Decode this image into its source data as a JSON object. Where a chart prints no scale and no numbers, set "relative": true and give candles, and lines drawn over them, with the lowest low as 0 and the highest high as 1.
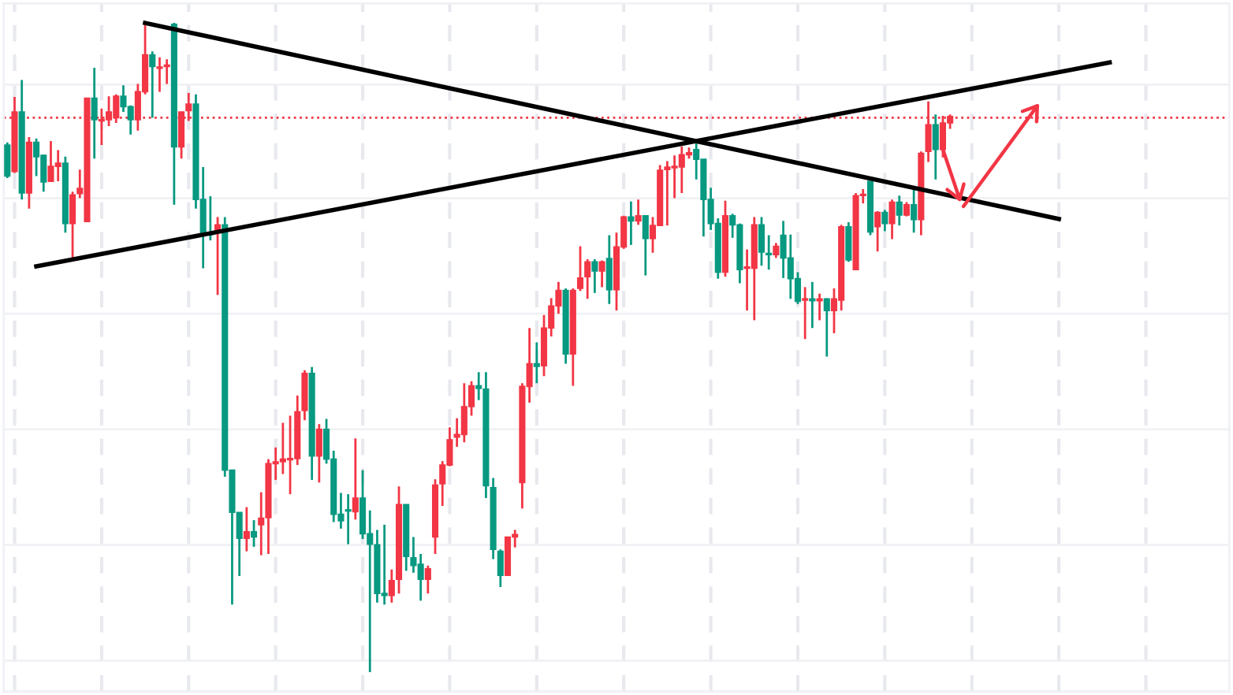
{
  "chart_data": {
    "type": "candlestick",
    "relative": true,
    "grid": true,
    "categories": [
      null,
      null,
      null,
      null,
      null,
      null,
      null,
      null,
      null,
      null,
      null,
      null,
      null,
      null,
      null,
      null,
      null,
      null,
      null,
      null,
      null,
      null,
      null,
      null,
      null,
      null,
      null,
      null,
      null,
      null,
      null,
      null,
      null,
      null,
      null,
      null,
      null,
      null,
      null,
      null,
      null,
      null,
      null,
      null,
      null,
      null,
      null,
      null,
      null,
      null,
      null,
      null,
      null,
      null,
      null,
      null,
      null,
      null,
      null,
      null,
      null,
      null,
      null,
      null,
      null,
      null,
      null,
      null,
      null,
      null,
      null,
      null,
      null,
      null,
      null,
      null,
      null,
      null,
      null,
      null,
      null,
      null,
      null,
      null,
      null,
      null,
      null,
      null,
      null,
      null,
      null,
      null,
      null,
      null,
      null,
      null,
      null,
      null,
      null,
      null,
      null,
      null,
      null,
      null,
      null,
      null,
      null,
      null,
      null,
      null,
      null,
      null,
      null,
      null,
      null,
      null,
      null,
      null,
      null,
      null,
      null,
      null,
      null,
      null,
      null,
      null,
      null,
      null,
      null,
      null,
      null,
      null,
      null,
      null,
      null,
      null,
      null,
      null,
      null,
      null,
      null,
      null,
      null,
      null,
      null,
      null,
      null,
      null,
      null,
      null,
      null,
      null,
      null,
      null,
      null,
      null,
      null,
      null,
      null,
      null,
      null,
      null,
      null,
      null,
      null,
      null,
      null,
      null,
      null
    ],
    "ohlc": [
      [
        0.812,
        0.816,
        0.761,
        0.764
      ],
      [
        0.771,
        0.886,
        0.769,
        0.863
      ],
      [
        0.863,
        0.912,
        0.728,
        0.738
      ],
      [
        0.738,
        0.824,
        0.714,
        0.816
      ],
      [
        0.816,
        0.822,
        0.764,
        0.794
      ],
      [
        0.796,
        0.797,
        0.74,
        0.755
      ],
      [
        0.756,
        0.818,
        0.755,
        0.779
      ],
      [
        0.779,
        0.804,
        0.756,
        0.784
      ],
      [
        0.784,
        0.794,
        0.677,
        0.691
      ],
      [
        0.691,
        0.74,
        0.636,
        0.735
      ],
      [
        0.737,
        0.774,
        0.73,
        0.745
      ],
      [
        0.694,
        0.884,
        0.694,
        0.884
      ],
      [
        0.884,
        0.931,
        0.791,
        0.851
      ],
      [
        0.849,
        0.868,
        0.812,
        0.851
      ],
      [
        0.851,
        0.887,
        0.841,
        0.863
      ],
      [
        0.854,
        0.89,
        0.846,
        0.887
      ],
      [
        0.887,
        0.904,
        0.863,
        0.871
      ],
      [
        0.871,
        0.873,
        0.828,
        0.851
      ],
      [
        0.851,
        0.906,
        0.834,
        0.894
      ],
      [
        0.894,
        1.0,
        0.89,
        0.951
      ],
      [
        0.951,
        0.956,
        0.854,
        0.933
      ],
      [
        0.93,
        0.947,
        0.894,
        0.932
      ],
      [
        0.933,
        0.944,
        0.906,
        0.935
      ],
      [
        0.998,
        1.0,
        0.72,
        0.809
      ],
      [
        0.809,
        0.863,
        0.791,
        0.863
      ],
      [
        0.865,
        0.892,
        0.849,
        0.875
      ],
      [
        0.875,
        0.89,
        0.714,
        0.728
      ],
      [
        0.728,
        0.778,
        0.622,
        0.677
      ],
      [
        0.677,
        0.733,
        0.665,
        0.674
      ],
      [
        0.679,
        0.701,
        0.581,
        0.689
      ],
      [
        0.689,
        0.701,
        0.301,
        0.311
      ],
      [
        0.311,
        0.311,
        0.104,
        0.246
      ],
      [
        0.246,
        0.246,
        0.148,
        0.206
      ],
      [
        0.206,
        0.254,
        0.186,
        0.216
      ],
      [
        0.216,
        0.234,
        0.193,
        0.208
      ],
      [
        0.227,
        0.277,
        0.18,
        0.237
      ],
      [
        0.238,
        0.328,
        0.182,
        0.321
      ],
      [
        0.321,
        0.346,
        0.296,
        0.324
      ],
      [
        0.324,
        0.384,
        0.305,
        0.328
      ],
      [
        0.327,
        0.395,
        0.274,
        0.329
      ],
      [
        0.329,
        0.426,
        0.319,
        0.401
      ],
      [
        0.403,
        0.465,
        0.388,
        0.46
      ],
      [
        0.46,
        0.47,
        0.296,
        0.333
      ],
      [
        0.333,
        0.382,
        0.292,
        0.374
      ],
      [
        0.374,
        0.39,
        0.321,
        0.328
      ],
      [
        0.328,
        0.341,
        0.231,
        0.243
      ],
      [
        0.243,
        0.276,
        0.221,
        0.233
      ],
      [
        0.25,
        0.274,
        0.197,
        0.248
      ],
      [
        0.247,
        0.36,
        0.235,
        0.268
      ],
      [
        0.268,
        0.311,
        0.205,
        0.213
      ],
      [
        0.213,
        0.249,
        0.0,
        0.197
      ],
      [
        0.196,
        0.219,
        0.107,
        0.121
      ],
      [
        0.121,
        0.227,
        0.104,
        0.118
      ],
      [
        0.118,
        0.158,
        0.107,
        0.141
      ],
      [
        0.143,
        0.286,
        0.121,
        0.258
      ],
      [
        0.258,
        0.258,
        0.156,
        0.178
      ],
      [
        0.176,
        0.208,
        0.153,
        0.164
      ],
      [
        0.166,
        0.182,
        0.11,
        0.143
      ],
      [
        0.143,
        0.164,
        0.121,
        0.159
      ],
      [
        0.208,
        0.297,
        0.182,
        0.288
      ],
      [
        0.29,
        0.325,
        0.256,
        0.319
      ],
      [
        0.319,
        0.377,
        0.317,
        0.358
      ],
      [
        0.362,
        0.391,
        0.347,
        0.366
      ],
      [
        0.366,
        0.445,
        0.354,
        0.409
      ],
      [
        0.409,
        0.448,
        0.395,
        0.441
      ],
      [
        0.441,
        0.462,
        0.419,
        0.437
      ],
      [
        0.436,
        0.462,
        0.268,
        0.287
      ],
      [
        0.284,
        0.299,
        0.174,
        0.189
      ],
      [
        0.186,
        0.189,
        0.131,
        0.149
      ],
      [
        0.149,
        0.208,
        0.149,
        0.208
      ],
      [
        0.208,
        0.219,
        0.192,
        0.212
      ],
      [
        0.292,
        0.445,
        0.252,
        0.44
      ],
      [
        0.44,
        0.53,
        0.415,
        0.475
      ],
      [
        0.475,
        0.508,
        0.445,
        0.471
      ],
      [
        0.472,
        0.55,
        0.456,
        0.53
      ],
      [
        0.53,
        0.576,
        0.517,
        0.564
      ],
      [
        0.564,
        0.601,
        0.552,
        0.588
      ],
      [
        0.588,
        0.591,
        0.475,
        0.49
      ],
      [
        0.49,
        0.591,
        0.441,
        0.588
      ],
      [
        0.591,
        0.656,
        0.587,
        0.607
      ],
      [
        0.609,
        0.636,
        0.575,
        0.632
      ],
      [
        0.632,
        0.636,
        0.584,
        0.618
      ],
      [
        0.618,
        0.634,
        0.593,
        0.632
      ],
      [
        0.637,
        0.673,
        0.567,
        0.589
      ],
      [
        0.589,
        0.677,
        0.557,
        0.655
      ],
      [
        0.655,
        0.703,
        0.652,
        0.701
      ],
      [
        0.701,
        0.725,
        0.658,
        0.695
      ],
      [
        0.695,
        0.728,
        0.689,
        0.703
      ],
      [
        0.703,
        0.703,
        0.611,
        0.668
      ],
      [
        0.668,
        0.701,
        0.646,
        0.688
      ],
      [
        0.688,
        0.781,
        0.687,
        0.773
      ],
      [
        0.774,
        0.787,
        0.688,
        0.778
      ],
      [
        0.777,
        0.796,
        0.73,
        0.779
      ],
      [
        0.778,
        0.81,
        0.738,
        0.797
      ],
      [
        0.797,
        0.808,
        0.791,
        0.8
      ],
      [
        0.805,
        0.816,
        0.759,
        0.79
      ],
      [
        0.79,
        0.79,
        0.671,
        0.728
      ],
      [
        0.728,
        0.746,
        0.681,
        0.691
      ],
      [
        0.691,
        0.699,
        0.606,
        0.616
      ],
      [
        0.616,
        0.726,
        0.609,
        0.703
      ],
      [
        0.703,
        0.706,
        0.669,
        0.689
      ],
      [
        0.689,
        0.691,
        0.599,
        0.62
      ],
      [
        0.622,
        0.651,
        0.557,
        0.624
      ],
      [
        0.622,
        0.701,
        0.542,
        0.689
      ],
      [
        0.689,
        0.701,
        0.626,
        0.647
      ],
      [
        0.645,
        0.673,
        0.62,
        0.643
      ],
      [
        0.643,
        0.661,
        0.638,
        0.656
      ],
      [
        0.673,
        0.695,
        0.607,
        0.638
      ],
      [
        0.638,
        0.674,
        0.575,
        0.606
      ],
      [
        0.606,
        0.616,
        0.567,
        0.571
      ],
      [
        0.573,
        0.593,
        0.513,
        0.575
      ],
      [
        0.575,
        0.601,
        0.53,
        0.572
      ],
      [
        0.572,
        0.583,
        0.542,
        0.575
      ],
      [
        0.575,
        0.576,
        0.486,
        0.557
      ],
      [
        0.557,
        0.591,
        0.522,
        0.575
      ],
      [
        0.573,
        0.689,
        0.557,
        0.686
      ],
      [
        0.686,
        0.693,
        0.632,
        0.635
      ],
      [
        0.62,
        0.738,
        0.62,
        0.734
      ],
      [
        0.734,
        0.744,
        0.722,
        0.736
      ],
      [
        0.756,
        0.756,
        0.673,
        0.678
      ],
      [
        0.686,
        0.71,
        0.648,
        0.708
      ],
      [
        0.708,
        0.712,
        0.679,
        0.691
      ],
      [
        0.691,
        0.728,
        0.667,
        0.724
      ],
      [
        0.724,
        0.734,
        0.688,
        0.704
      ],
      [
        0.704,
        0.724,
        0.702,
        0.72
      ],
      [
        0.72,
        0.746,
        0.677,
        0.697
      ],
      [
        0.697,
        0.802,
        0.673,
        0.799
      ],
      [
        0.802,
        0.879,
        0.786,
        0.843
      ],
      [
        0.843,
        0.859,
        0.759,
        0.805
      ],
      [
        0.805,
        0.857,
        0.793,
        0.846
      ],
      [
        0.846,
        0.859,
        0.837,
        0.856
      ],
      null,
      null,
      null,
      null,
      null,
      null,
      null,
      null,
      null,
      null,
      null,
      null,
      null,
      null,
      null,
      null,
      null,
      null,
      null,
      null,
      null,
      null,
      null,
      null,
      null,
      null,
      null,
      null,
      null,
      null,
      null,
      null,
      null,
      null,
      null,
      null,
      null,
      null
    ],
    "colors": [
      "#089981",
      "#f23645",
      "#089981",
      "#f23645",
      "#089981",
      "#089981",
      "#f23645",
      "#f23645",
      "#089981",
      "#f23645",
      "#f23645",
      "#f23645",
      "#089981",
      "#f23645",
      "#f23645",
      "#f23645",
      "#089981",
      "#089981",
      "#f23645",
      "#f23645",
      "#089981",
      "#f23645",
      "#f23645",
      "#089981",
      "#f23645",
      "#f23645",
      "#089981",
      "#089981",
      "#089981",
      "#f23645",
      "#089981",
      "#089981",
      "#089981",
      "#f23645",
      "#089981",
      "#f23645",
      "#f23645",
      "#f23645",
      "#f23645",
      "#f23645",
      "#f23645",
      "#f23645",
      "#089981",
      "#f23645",
      "#089981",
      "#089981",
      "#089981",
      "#089981",
      "#f23645",
      "#089981",
      "#089981",
      "#089981",
      "#089981",
      "#f23645",
      "#f23645",
      "#089981",
      "#089981",
      "#089981",
      "#f23645",
      "#f23645",
      "#f23645",
      "#f23645",
      "#f23645",
      "#f23645",
      "#f23645",
      "#089981",
      "#089981",
      "#089981",
      "#089981",
      "#f23645",
      "#f23645",
      "#f23645",
      "#f23645",
      "#089981",
      "#f23645",
      "#f23645",
      "#f23645",
      "#089981",
      "#f23645",
      "#f23645",
      "#f23645",
      "#089981",
      "#f23645",
      "#089981",
      "#f23645",
      "#f23645",
      "#089981",
      "#f23645",
      "#089981",
      "#f23645",
      "#f23645",
      "#f23645",
      "#f23645",
      "#f23645",
      "#f23645",
      "#089981",
      "#089981",
      "#089981",
      "#089981",
      "#f23645",
      "#089981",
      "#089981",
      "#f23645",
      "#f23645",
      "#089981",
      "#089981",
      "#f23645",
      "#089981",
      "#089981",
      "#089981",
      "#f23645",
      "#089981",
      "#f23645",
      "#089981",
      "#f23645",
      "#f23645",
      "#089981",
      "#f23645",
      "#f23645",
      "#089981",
      "#f23645",
      "#089981",
      "#f23645",
      "#089981",
      "#f23645",
      "#089981",
      "#f23645",
      "#f23645",
      "#089981",
      "#f23645",
      "#f23645",
      null,
      null,
      null,
      null,
      null,
      null,
      null,
      null,
      null,
      null,
      null,
      null,
      null,
      null,
      null,
      null,
      null,
      null,
      null,
      null,
      null,
      null,
      null,
      null,
      null,
      null,
      null,
      null,
      null,
      null,
      null,
      null,
      null,
      null,
      null,
      null,
      null,
      null
    ],
    "series": [
      {
        "type": "line",
        "color": "#000000",
        "values": [
          null,
          null,
          null,
          null,
          null,
          null,
          null,
          null,
          null,
          null,
          null,
          null,
          null,
          null,
          null,
          null,
          null,
          null,
          null,
          1.0,
          null,
          null,
          null,
          null,
          null,
          null,
          null,
          null,
          null,
          null,
          null,
          null,
          null,
          null,
          null,
          null,
          null,
          null,
          null,
          null,
          null,
          null,
          null,
          null,
          null,
          null,
          null,
          null,
          null,
          null,
          null,
          null,
          null,
          null,
          null,
          null,
          null,
          null,
          null,
          null,
          null,
          null,
          null,
          null,
          null,
          null,
          null,
          null,
          null,
          null,
          null,
          null,
          null,
          null,
          null,
          null,
          null,
          null,
          null,
          null,
          null,
          null,
          null,
          null,
          null,
          null,
          null,
          null,
          null,
          null,
          null,
          null,
          null,
          null,
          null,
          null,
          null,
          null,
          null,
          null,
          null,
          null,
          null,
          null,
          null,
          null,
          null,
          null,
          null,
          null,
          null,
          null,
          null,
          null,
          null,
          null,
          null,
          null,
          null,
          null,
          null,
          null,
          null,
          null,
          null,
          null,
          null,
          null,
          null,
          null,
          null,
          null,
          null,
          null,
          null,
          null,
          null,
          null,
          null,
          null,
          null,
          null,
          null,
          null,
          null,
          0.698,
          null,
          null,
          null,
          null,
          null,
          null,
          null,
          null,
          null,
          null,
          null,
          null,
          null,
          null,
          null,
          null,
          null,
          null,
          null,
          null,
          null,
          null,
          null
        ]
      },
      {
        "type": "line",
        "color": "#000000",
        "values": [
          null,
          null,
          null,
          null,
          0.625,
          null,
          null,
          null,
          null,
          null,
          null,
          null,
          null,
          null,
          null,
          null,
          null,
          null,
          null,
          null,
          null,
          null,
          null,
          null,
          null,
          null,
          null,
          null,
          null,
          null,
          null,
          null,
          null,
          null,
          null,
          null,
          null,
          null,
          null,
          null,
          null,
          null,
          null,
          null,
          null,
          null,
          null,
          null,
          null,
          null,
          null,
          null,
          null,
          null,
          null,
          null,
          null,
          null,
          null,
          null,
          null,
          null,
          null,
          null,
          null,
          null,
          null,
          null,
          null,
          null,
          null,
          null,
          null,
          null,
          null,
          null,
          null,
          null,
          null,
          null,
          null,
          null,
          null,
          null,
          null,
          null,
          null,
          null,
          null,
          null,
          null,
          null,
          null,
          null,
          null,
          null,
          null,
          null,
          null,
          null,
          null,
          null,
          null,
          null,
          null,
          null,
          null,
          null,
          null,
          null,
          null,
          null,
          null,
          null,
          null,
          null,
          null,
          null,
          null,
          null,
          null,
          null,
          null,
          null,
          null,
          null,
          null,
          null,
          null,
          null,
          null,
          null,
          null,
          null,
          null,
          null,
          null,
          null,
          null,
          null,
          null,
          null,
          null,
          null,
          null,
          null,
          null,
          null,
          null,
          null,
          null,
          null,
          0.939,
          null,
          null,
          null,
          null,
          null,
          null,
          null,
          null,
          null,
          null,
          null,
          null,
          null,
          null,
          null,
          null
        ]
      }
    ],
    "ref_lines": [
      {
        "axis": "y",
        "value": 0.854,
        "color": "#f23645",
        "line_style": "dotted"
      }
    ]
  }
}
